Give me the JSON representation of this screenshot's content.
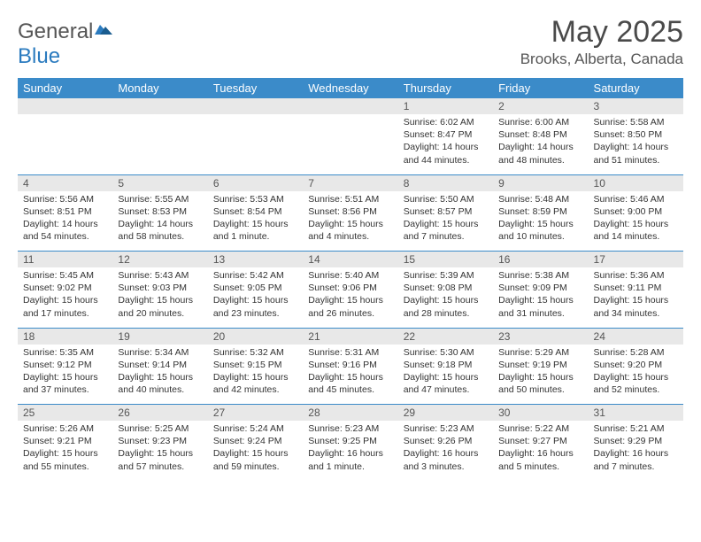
{
  "logo": {
    "text1": "General",
    "text2": "Blue"
  },
  "title": "May 2025",
  "location": "Brooks, Alberta, Canada",
  "colors": {
    "header_bg": "#3b8bc9",
    "header_text": "#ffffff",
    "daynum_bg": "#e8e8e8",
    "cell_border": "#3b8bc9",
    "logo_gray": "#555555",
    "logo_blue": "#2b7bbf"
  },
  "day_labels": [
    "Sunday",
    "Monday",
    "Tuesday",
    "Wednesday",
    "Thursday",
    "Friday",
    "Saturday"
  ],
  "weeks": [
    {
      "nums": [
        "",
        "",
        "",
        "",
        "1",
        "2",
        "3"
      ],
      "cells": [
        "",
        "",
        "",
        "",
        "Sunrise: 6:02 AM\nSunset: 8:47 PM\nDaylight: 14 hours and 44 minutes.",
        "Sunrise: 6:00 AM\nSunset: 8:48 PM\nDaylight: 14 hours and 48 minutes.",
        "Sunrise: 5:58 AM\nSunset: 8:50 PM\nDaylight: 14 hours and 51 minutes."
      ]
    },
    {
      "nums": [
        "4",
        "5",
        "6",
        "7",
        "8",
        "9",
        "10"
      ],
      "cells": [
        "Sunrise: 5:56 AM\nSunset: 8:51 PM\nDaylight: 14 hours and 54 minutes.",
        "Sunrise: 5:55 AM\nSunset: 8:53 PM\nDaylight: 14 hours and 58 minutes.",
        "Sunrise: 5:53 AM\nSunset: 8:54 PM\nDaylight: 15 hours and 1 minute.",
        "Sunrise: 5:51 AM\nSunset: 8:56 PM\nDaylight: 15 hours and 4 minutes.",
        "Sunrise: 5:50 AM\nSunset: 8:57 PM\nDaylight: 15 hours and 7 minutes.",
        "Sunrise: 5:48 AM\nSunset: 8:59 PM\nDaylight: 15 hours and 10 minutes.",
        "Sunrise: 5:46 AM\nSunset: 9:00 PM\nDaylight: 15 hours and 14 minutes."
      ]
    },
    {
      "nums": [
        "11",
        "12",
        "13",
        "14",
        "15",
        "16",
        "17"
      ],
      "cells": [
        "Sunrise: 5:45 AM\nSunset: 9:02 PM\nDaylight: 15 hours and 17 minutes.",
        "Sunrise: 5:43 AM\nSunset: 9:03 PM\nDaylight: 15 hours and 20 minutes.",
        "Sunrise: 5:42 AM\nSunset: 9:05 PM\nDaylight: 15 hours and 23 minutes.",
        "Sunrise: 5:40 AM\nSunset: 9:06 PM\nDaylight: 15 hours and 26 minutes.",
        "Sunrise: 5:39 AM\nSunset: 9:08 PM\nDaylight: 15 hours and 28 minutes.",
        "Sunrise: 5:38 AM\nSunset: 9:09 PM\nDaylight: 15 hours and 31 minutes.",
        "Sunrise: 5:36 AM\nSunset: 9:11 PM\nDaylight: 15 hours and 34 minutes."
      ]
    },
    {
      "nums": [
        "18",
        "19",
        "20",
        "21",
        "22",
        "23",
        "24"
      ],
      "cells": [
        "Sunrise: 5:35 AM\nSunset: 9:12 PM\nDaylight: 15 hours and 37 minutes.",
        "Sunrise: 5:34 AM\nSunset: 9:14 PM\nDaylight: 15 hours and 40 minutes.",
        "Sunrise: 5:32 AM\nSunset: 9:15 PM\nDaylight: 15 hours and 42 minutes.",
        "Sunrise: 5:31 AM\nSunset: 9:16 PM\nDaylight: 15 hours and 45 minutes.",
        "Sunrise: 5:30 AM\nSunset: 9:18 PM\nDaylight: 15 hours and 47 minutes.",
        "Sunrise: 5:29 AM\nSunset: 9:19 PM\nDaylight: 15 hours and 50 minutes.",
        "Sunrise: 5:28 AM\nSunset: 9:20 PM\nDaylight: 15 hours and 52 minutes."
      ]
    },
    {
      "nums": [
        "25",
        "26",
        "27",
        "28",
        "29",
        "30",
        "31"
      ],
      "cells": [
        "Sunrise: 5:26 AM\nSunset: 9:21 PM\nDaylight: 15 hours and 55 minutes.",
        "Sunrise: 5:25 AM\nSunset: 9:23 PM\nDaylight: 15 hours and 57 minutes.",
        "Sunrise: 5:24 AM\nSunset: 9:24 PM\nDaylight: 15 hours and 59 minutes.",
        "Sunrise: 5:23 AM\nSunset: 9:25 PM\nDaylight: 16 hours and 1 minute.",
        "Sunrise: 5:23 AM\nSunset: 9:26 PM\nDaylight: 16 hours and 3 minutes.",
        "Sunrise: 5:22 AM\nSunset: 9:27 PM\nDaylight: 16 hours and 5 minutes.",
        "Sunrise: 5:21 AM\nSunset: 9:29 PM\nDaylight: 16 hours and 7 minutes."
      ]
    }
  ]
}
